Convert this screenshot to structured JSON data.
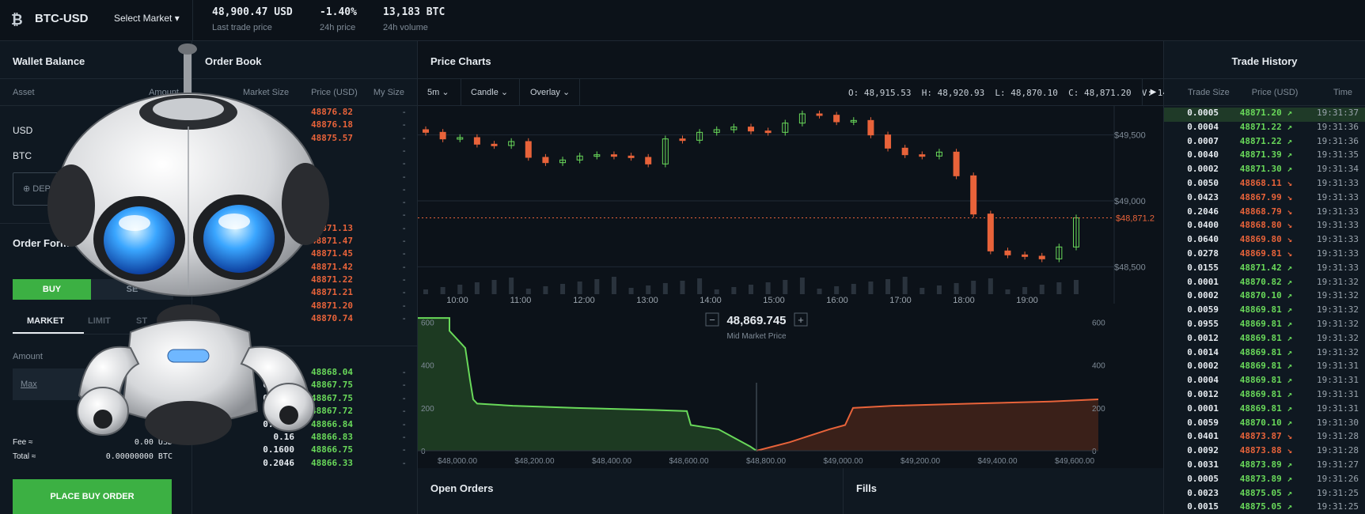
{
  "header": {
    "logo_icon": "bitcoin-icon",
    "pair": "BTC-USD",
    "select_market": "Select Market ▾",
    "last_price": "48,900.47 USD",
    "last_price_label": "Last trade price",
    "change": "-1.40%",
    "change_label": "24h price",
    "volume": "13,183 BTC",
    "volume_label": "24h volume",
    "change_color": "#e8633a"
  },
  "wallet": {
    "title": "Wallet Balance",
    "col_asset": "Asset",
    "col_amount": "Amount",
    "assets": [
      "USD",
      "BTC"
    ],
    "deposit": "DEPO"
  },
  "order_form": {
    "title": "Order Form",
    "buy": "BUY",
    "sell": "SE",
    "types": [
      "MARKET",
      "LIMIT",
      "ST"
    ],
    "amount_label": "Amount",
    "max": "Max",
    "fee_label": "Fee ≈",
    "fee_value": "0.00 USD",
    "total_label": "Total ≈",
    "total_value": "0.00000000 BTC",
    "place_order": "PLACE BUY ORDER"
  },
  "order_book": {
    "title": "Order Book",
    "col_market_size": "Market Size",
    "col_price": "Price (USD)",
    "col_my_size": "My Size",
    "asks": [
      "48876.82",
      "48876.18",
      "48875.57",
      "",
      "",
      "",
      "",
      "",
      "",
      "48871.13",
      "48871.47",
      "48871.45",
      "48871.42",
      "48871.22",
      "48871.21",
      "48871.20",
      "48870.74"
    ],
    "bids": [
      {
        "size": "0.0001",
        "price": "48868.04"
      },
      {
        "size": "0.0002",
        "price": "48867.75"
      },
      {
        "size": "0.0002",
        "price": "48867.75"
      },
      {
        "size": "0.1104",
        "price": "48867.72"
      },
      {
        "size": "0.0174",
        "price": "48866.84"
      },
      {
        "size": "0.16",
        "price": "48866.83"
      },
      {
        "size": "0.1600",
        "price": "48866.75"
      },
      {
        "size": "0.2046",
        "price": "48866.33"
      }
    ],
    "dash": "-"
  },
  "charts": {
    "title": "Price Charts",
    "interval": "5m",
    "chart_type": "Candle",
    "overlay": "Overlay",
    "ohlc": "O: 48,915.53  H: 48,920.93  L: 48,870.10  C: 48,871.20  V: 14",
    "time_labels": [
      "10:00",
      "11:00",
      "12:00",
      "13:00",
      "14:00",
      "15:00",
      "16:00",
      "17:00",
      "18:00",
      "19:00"
    ],
    "price_labels": [
      "$49,500",
      "$49,000",
      "$48,500"
    ],
    "last_price_tag": "$48,871.2",
    "mid_price": "48,869.745",
    "mid_label": "Mid Market Price",
    "minus": "−",
    "plus": "+",
    "depth_x_labels": [
      "$48,000.00",
      "$48,200.00",
      "$48,400.00",
      "$48,600.00",
      "$48,800.00",
      "$49,000.00",
      "$49,200.00",
      "$49,400.00",
      "$49,600.00"
    ],
    "depth_y_labels": [
      "600",
      "400",
      "200",
      "0"
    ],
    "bid_color": "#69d95a",
    "ask_color": "#e8633a"
  },
  "chart_data": {
    "type": "line",
    "title": "",
    "xlabel": "",
    "ylabel": "",
    "x": [
      "09:45",
      "10:00",
      "10:15",
      "10:30",
      "10:45",
      "11:00",
      "11:15",
      "11:30",
      "11:45",
      "12:00",
      "12:15",
      "12:30",
      "12:45",
      "13:00",
      "13:15",
      "13:30",
      "13:45",
      "14:00",
      "14:15",
      "14:30",
      "14:45",
      "15:00",
      "15:15",
      "15:30",
      "15:45",
      "16:00",
      "16:15",
      "16:30",
      "16:45",
      "17:00",
      "17:15",
      "17:30",
      "17:45",
      "18:00",
      "18:15",
      "18:30",
      "18:45",
      "19:00",
      "19:15"
    ],
    "series": [
      {
        "values": [
          49520,
          49470,
          49480,
          49430,
          49420,
          49450,
          49330,
          49290,
          49310,
          49340,
          49350,
          49340,
          49330,
          49280,
          49470,
          49460,
          49520,
          49540,
          49560,
          49530,
          49520,
          49590,
          49660,
          49650,
          49600,
          49610,
          49500,
          49400,
          49350,
          49340,
          49370,
          49190,
          48900,
          48620,
          48590,
          48580,
          48560,
          48650,
          48871
        ]
      }
    ],
    "ylim": [
      48400,
      49720
    ]
  },
  "orders": {
    "open_orders": "Open Orders",
    "fills": "Fills"
  },
  "history": {
    "title": "Trade History",
    "col_size": "Trade Size",
    "col_price": "Price (USD)",
    "col_time": "Time",
    "rows": [
      {
        "size": "0.0005",
        "price": "48871.20 ↗",
        "time": "19:31:37",
        "side": "buy"
      },
      {
        "size": "0.0004",
        "price": "48871.22 ↗",
        "time": "19:31:36",
        "side": "buy"
      },
      {
        "size": "0.0007",
        "price": "48871.22 ↗",
        "time": "19:31:36",
        "side": "buy"
      },
      {
        "size": "0.0040",
        "price": "48871.39 ↗",
        "time": "19:31:35",
        "side": "buy"
      },
      {
        "size": "0.0002",
        "price": "48871.30 ↗",
        "time": "19:31:34",
        "side": "buy"
      },
      {
        "size": "0.0050",
        "price": "48868.11 ↘",
        "time": "19:31:33",
        "side": "sell"
      },
      {
        "size": "0.0423",
        "price": "48867.99 ↘",
        "time": "19:31:33",
        "side": "sell"
      },
      {
        "size": "0.2046",
        "price": "48868.79 ↘",
        "time": "19:31:33",
        "side": "sell"
      },
      {
        "size": "0.0400",
        "price": "48868.80 ↘",
        "time": "19:31:33",
        "side": "sell"
      },
      {
        "size": "0.0640",
        "price": "48869.80 ↘",
        "time": "19:31:33",
        "side": "sell"
      },
      {
        "size": "0.0278",
        "price": "48869.81 ↘",
        "time": "19:31:33",
        "side": "sell"
      },
      {
        "size": "0.0155",
        "price": "48871.42 ↗",
        "time": "19:31:33",
        "side": "buy"
      },
      {
        "size": "0.0001",
        "price": "48870.82 ↗",
        "time": "19:31:32",
        "side": "buy"
      },
      {
        "size": "0.0002",
        "price": "48870.10 ↗",
        "time": "19:31:32",
        "side": "buy"
      },
      {
        "size": "0.0059",
        "price": "48869.81 ↗",
        "time": "19:31:32",
        "side": "buy"
      },
      {
        "size": "0.0955",
        "price": "48869.81 ↗",
        "time": "19:31:32",
        "side": "buy"
      },
      {
        "size": "0.0012",
        "price": "48869.81 ↗",
        "time": "19:31:32",
        "side": "buy"
      },
      {
        "size": "0.0014",
        "price": "48869.81 ↗",
        "time": "19:31:32",
        "side": "buy"
      },
      {
        "size": "0.0002",
        "price": "48869.81 ↗",
        "time": "19:31:31",
        "side": "buy"
      },
      {
        "size": "0.0004",
        "price": "48869.81 ↗",
        "time": "19:31:31",
        "side": "buy"
      },
      {
        "size": "0.0012",
        "price": "48869.81 ↗",
        "time": "19:31:31",
        "side": "buy"
      },
      {
        "size": "0.0001",
        "price": "48869.81 ↗",
        "time": "19:31:31",
        "side": "buy"
      },
      {
        "size": "0.0059",
        "price": "48870.10 ↗",
        "time": "19:31:30",
        "side": "buy"
      },
      {
        "size": "0.0401",
        "price": "48873.87 ↘",
        "time": "19:31:28",
        "side": "sell"
      },
      {
        "size": "0.0092",
        "price": "48873.88 ↘",
        "time": "19:31:28",
        "side": "sell"
      },
      {
        "size": "0.0031",
        "price": "48873.89 ↗",
        "time": "19:31:27",
        "side": "buy"
      },
      {
        "size": "0.0005",
        "price": "48873.89 ↗",
        "time": "19:31:26",
        "side": "buy"
      },
      {
        "size": "0.0023",
        "price": "48875.05 ↗",
        "time": "19:31:25",
        "side": "buy"
      },
      {
        "size": "0.0015",
        "price": "48875.05 ↗",
        "time": "19:31:25",
        "side": "buy"
      }
    ]
  }
}
